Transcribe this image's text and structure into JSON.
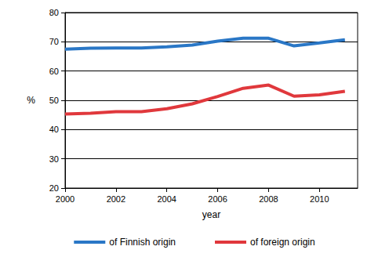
{
  "chart_data": {
    "type": "line",
    "x": [
      2000,
      2001,
      2002,
      2003,
      2004,
      2005,
      2006,
      2007,
      2008,
      2009,
      2010,
      2011
    ],
    "series": [
      {
        "name": "of Finnish origin",
        "color": "#2a77c6",
        "values": [
          67.5,
          67.8,
          67.9,
          67.9,
          68.3,
          68.9,
          70.2,
          71.2,
          71.2,
          68.6,
          69.6,
          70.7
        ]
      },
      {
        "name": "of foreign origin",
        "color": "#e0383c",
        "values": [
          45.3,
          45.6,
          46.1,
          46.1,
          47.1,
          48.8,
          51.3,
          54.1,
          55.2,
          51.4,
          51.9,
          53.1
        ]
      }
    ],
    "x_label": "year",
    "y_label": "%",
    "xlim": [
      2000,
      2011.5
    ],
    "xticks": [
      2000,
      2002,
      2004,
      2006,
      2008,
      2010
    ],
    "ylim": [
      20,
      80
    ],
    "yticks": [
      20,
      30,
      40,
      50,
      60,
      70,
      80
    ],
    "grid": true,
    "legend": "bottom"
  }
}
